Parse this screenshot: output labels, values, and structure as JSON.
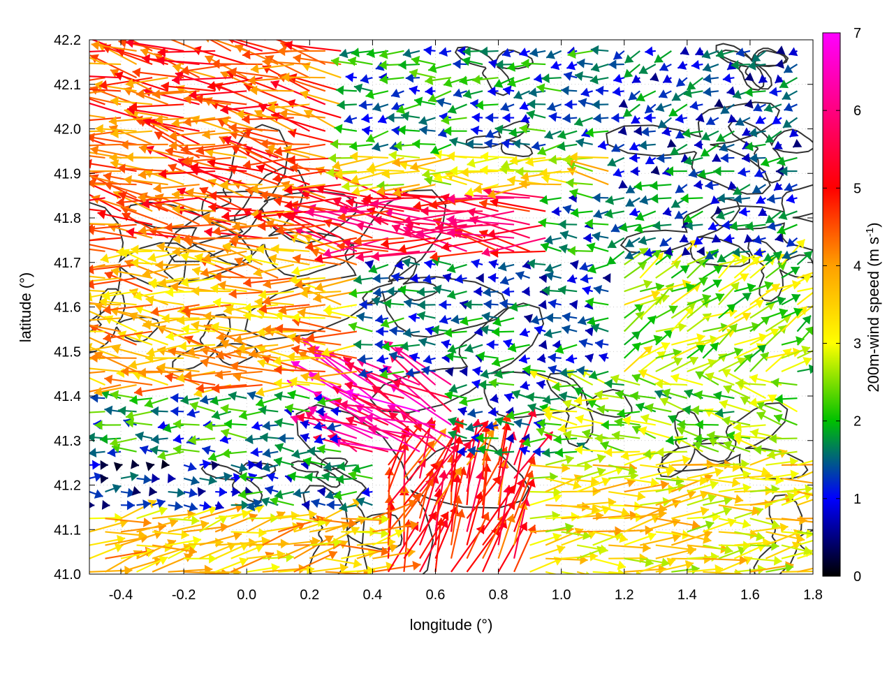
{
  "chart_data": {
    "type": "vector-field",
    "xlabel": "longitude (°)",
    "ylabel": "latitude (°)",
    "xlim": [
      -0.5,
      1.8
    ],
    "ylim": [
      41.0,
      42.2
    ],
    "x_ticks": [
      -0.4,
      -0.2,
      0.0,
      0.2,
      0.4,
      0.6,
      0.8,
      1.0,
      1.2,
      1.4,
      1.6,
      1.8
    ],
    "x_tick_labels": [
      "-0.4",
      "-0.2",
      "0.0",
      "0.2",
      "0.4",
      "0.6",
      "0.8",
      "1.0",
      "1.2",
      "1.4",
      "1.6",
      "1.8"
    ],
    "y_ticks": [
      41.0,
      41.1,
      41.2,
      41.3,
      41.4,
      41.5,
      41.6,
      41.7,
      41.8,
      41.9,
      42.0,
      42.1,
      42.2
    ],
    "y_tick_labels": [
      "41.0",
      "41.1",
      "41.2",
      "41.3",
      "41.4",
      "41.5",
      "41.6",
      "41.7",
      "41.8",
      "41.9",
      "42.0",
      "42.1",
      "42.2"
    ],
    "grid": true,
    "colorbar": {
      "label": "200m-wind speed (m s-1)",
      "label_main": "200m-wind speed (m s",
      "label_sup": "-1",
      "label_close": ")",
      "range": [
        0,
        7
      ],
      "ticks": [
        0,
        1,
        2,
        3,
        4,
        5,
        6,
        7
      ],
      "tick_labels": [
        "0",
        "1",
        "2",
        "3",
        "4",
        "5",
        "6",
        "7"
      ],
      "palette": [
        "#000000",
        "#0000ff",
        "#00c000",
        "#ffff00",
        "#ffa000",
        "#ff0000",
        "#ff00ff"
      ]
    },
    "wind_regions": [
      {
        "lon": [
          -0.5,
          0.3
        ],
        "lat": [
          41.75,
          42.2
        ],
        "speed": 4.5,
        "dir_deg": 170
      },
      {
        "lon": [
          -0.5,
          0.35
        ],
        "lat": [
          41.4,
          41.75
        ],
        "speed": 3.8,
        "dir_deg": 175
      },
      {
        "lon": [
          0.3,
          1.0
        ],
        "lat": [
          41.72,
          41.85
        ],
        "speed": 5.3,
        "dir_deg": 175
      },
      {
        "lon": [
          0.3,
          1.2
        ],
        "lat": [
          41.85,
          41.95
        ],
        "speed": 3.2,
        "dir_deg": 178
      },
      {
        "lon": [
          -0.5,
          0.0
        ],
        "lat": [
          41.25,
          41.4
        ],
        "speed": 1.7,
        "dir_deg": 180
      },
      {
        "lon": [
          -0.5,
          0.0
        ],
        "lat": [
          41.15,
          41.25
        ],
        "speed": 0.9,
        "dir_deg": 0
      },
      {
        "lon": [
          -0.5,
          0.4
        ],
        "lat": [
          41.0,
          41.15
        ],
        "speed": 3.6,
        "dir_deg": 10
      },
      {
        "lon": [
          0.3,
          0.7
        ],
        "lat": [
          41.25,
          41.45
        ],
        "speed": 6.2,
        "dir_deg": 155
      },
      {
        "lon": [
          0.4,
          0.9
        ],
        "lat": [
          41.0,
          41.25
        ],
        "speed": 4.8,
        "dir_deg": 70
      },
      {
        "lon": [
          0.6,
          1.2
        ],
        "lat": [
          41.45,
          41.7
        ],
        "speed": 1.3,
        "dir_deg": 180
      },
      {
        "lon": [
          0.9,
          1.8
        ],
        "lat": [
          41.0,
          41.25
        ],
        "speed": 3.3,
        "dir_deg": 5
      },
      {
        "lon": [
          1.0,
          1.8
        ],
        "lat": [
          41.25,
          41.45
        ],
        "speed": 2.4,
        "dir_deg": 170
      },
      {
        "lon": [
          1.2,
          1.8
        ],
        "lat": [
          41.7,
          42.2
        ],
        "speed": 1.2,
        "dir_deg": 200
      },
      {
        "lon": [
          0.3,
          1.2
        ],
        "lat": [
          41.95,
          42.2
        ],
        "speed": 1.6,
        "dir_deg": 185
      },
      {
        "lon": [
          1.2,
          1.8
        ],
        "lat": [
          41.45,
          41.7
        ],
        "speed": 2.6,
        "dir_deg": 30
      }
    ]
  }
}
